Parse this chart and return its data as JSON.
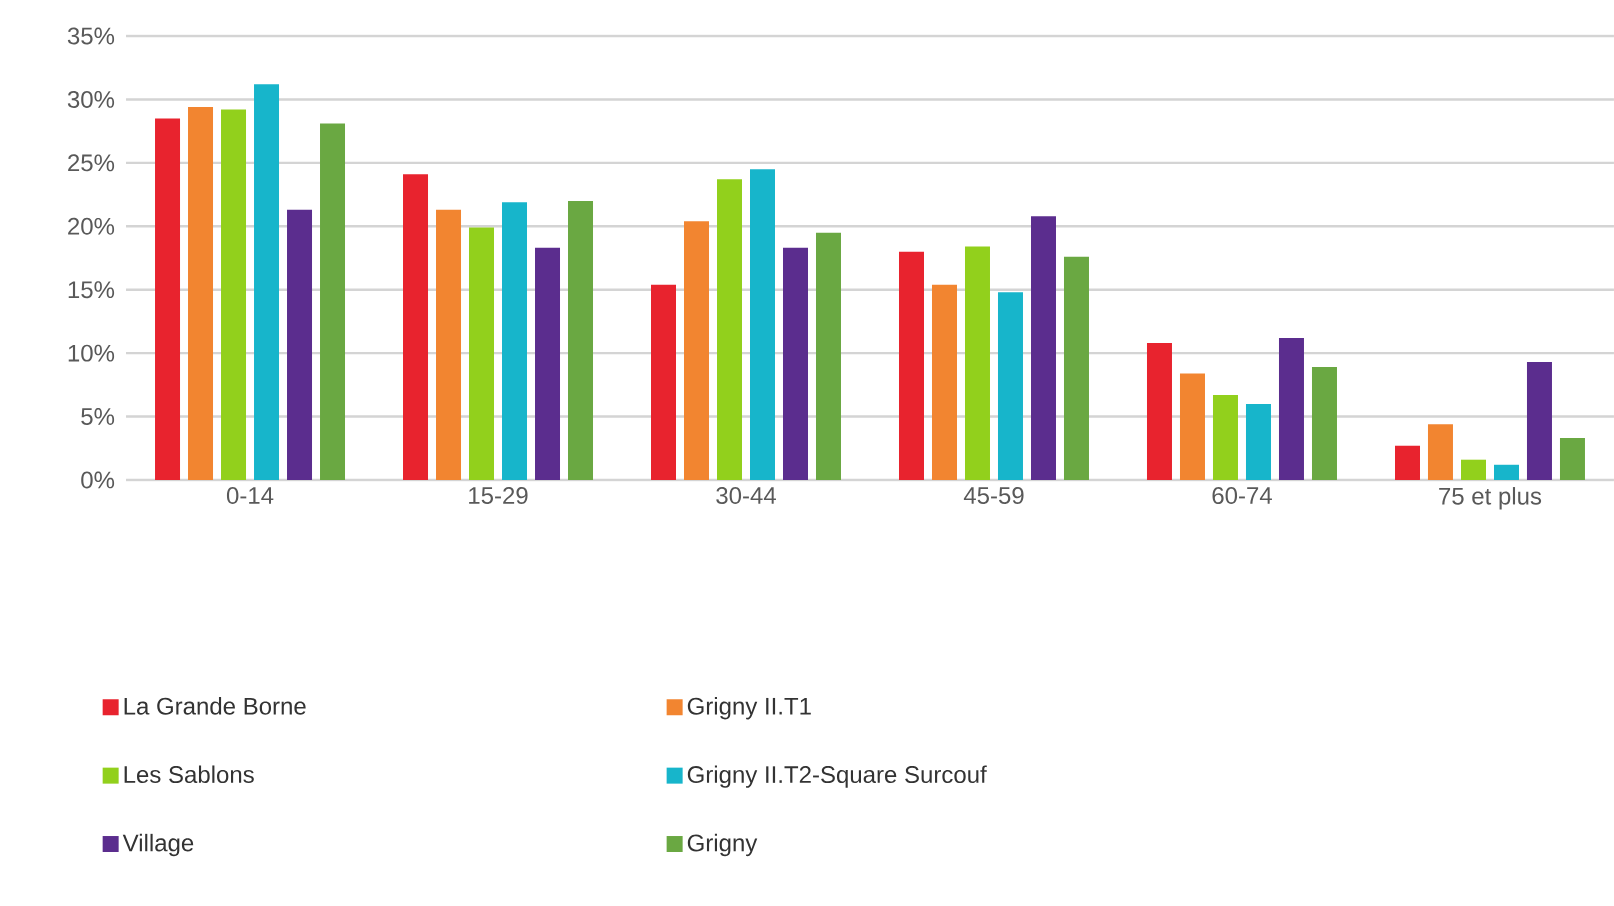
{
  "chart_data": {
    "type": "bar",
    "categories": [
      "0-14",
      "15-29",
      "30-44",
      "45-59",
      "60-74",
      "75 et plus"
    ],
    "series": [
      {
        "name": "La Grande Borne",
        "color": "#e8232e",
        "values": [
          28.5,
          24.1,
          15.4,
          18.0,
          10.8,
          2.7
        ]
      },
      {
        "name": "Grigny II.T1",
        "color": "#f28530",
        "values": [
          29.4,
          21.3,
          20.4,
          15.4,
          8.4,
          4.4
        ]
      },
      {
        "name": "Les Sablons",
        "color": "#92d01c",
        "values": [
          29.2,
          19.9,
          23.7,
          18.4,
          6.7,
          1.6
        ]
      },
      {
        "name": "Grigny II.T2-Square Surcouf",
        "color": "#17b5cb",
        "values": [
          31.2,
          21.9,
          24.5,
          14.8,
          6.0,
          1.2
        ]
      },
      {
        "name": "Village",
        "color": "#5b2d8e",
        "values": [
          21.3,
          18.3,
          18.3,
          20.8,
          11.2,
          9.3
        ]
      },
      {
        "name": "Grigny",
        "color": "#6aa842",
        "values": [
          28.1,
          22.0,
          19.5,
          17.6,
          8.9,
          3.3
        ]
      }
    ],
    "ylim": [
      0,
      35
    ],
    "yticks": [
      {
        "value": 0,
        "label": "0%"
      },
      {
        "value": 5,
        "label": "5%"
      },
      {
        "value": 10,
        "label": "10%"
      },
      {
        "value": 15,
        "label": "15%"
      },
      {
        "value": 20,
        "label": "20%"
      },
      {
        "value": 25,
        "label": "25%"
      },
      {
        "value": 30,
        "label": "30%"
      },
      {
        "value": 35,
        "label": "35%"
      }
    ],
    "grid": "y",
    "legend": "bottom"
  }
}
